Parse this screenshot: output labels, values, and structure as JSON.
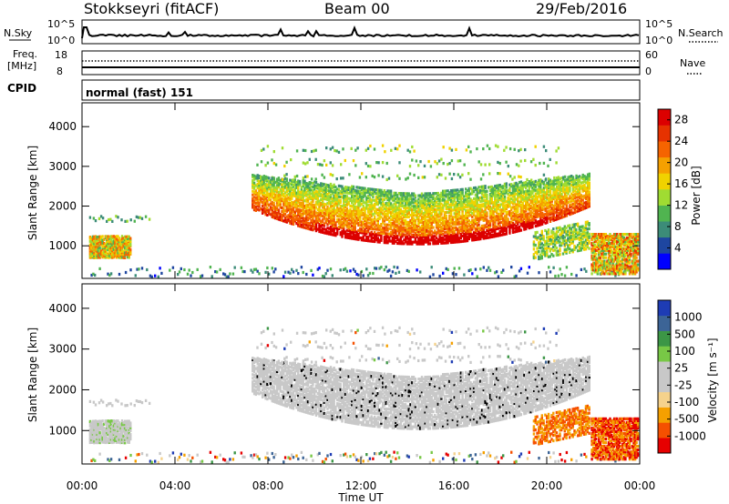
{
  "header": {
    "station": "Stokkseyri (fitACF)",
    "beam": "Beam 00",
    "date": "29/Feb/2016"
  },
  "strip_labels": {
    "nsky": "N.Sky",
    "nsky_top": "10^5",
    "nsky_bottom": "10^0",
    "nsearch": "N.Search",
    "nsearch_top": "10^5",
    "nsearch_bottom": "10^0",
    "freq_line1": "Freq.",
    "freq_line2": "[MHz]",
    "freq_top": "18",
    "freq_bottom": "8",
    "nave": "Nave",
    "nave_top": "60",
    "nave_bottom": "0",
    "cpid": "CPID",
    "cpid_text": "normal (fast) 151"
  },
  "colors": {
    "power_scale": [
      "#0000ff",
      "#1e46a0",
      "#3c8c78",
      "#50b450",
      "#a0dc32",
      "#f0d200",
      "#f5a000",
      "#f56400",
      "#e63200",
      "#dc0000"
    ],
    "velocity_scale": [
      "#e60000",
      "#f55000",
      "#f5a000",
      "#f5d28c",
      "#c8c8c8",
      "#c8c8c8",
      "#78c846",
      "#3c9646",
      "#3c6496",
      "#1e3cb4"
    ],
    "ground_scatter": "#c8c8c8"
  },
  "chart_data": [
    {
      "type": "heatmap",
      "panel": "power",
      "xlabel": "Time UT",
      "ylabel": "Slant Range [km]",
      "x_ticks": [
        "00:00",
        "04:00",
        "08:00",
        "12:00",
        "16:00",
        "20:00",
        "00:00"
      ],
      "y_ticks": [
        1000,
        2000,
        3000,
        4000
      ],
      "ylim": [
        180,
        4600
      ],
      "xlim_hours": [
        0,
        24
      ],
      "colorbar": {
        "label": "Power [dB]",
        "ticks": [
          4,
          8,
          12,
          16,
          20,
          24,
          28
        ],
        "range": [
          0,
          30
        ]
      }
    },
    {
      "type": "heatmap",
      "panel": "velocity",
      "xlabel": "Time UT",
      "ylabel": "Slant Range [km]",
      "x_ticks": [
        "00:00",
        "04:00",
        "08:00",
        "12:00",
        "16:00",
        "20:00",
        "00:00"
      ],
      "y_ticks": [
        1000,
        2000,
        3000,
        4000
      ],
      "ylim": [
        180,
        4600
      ],
      "xlim_hours": [
        0,
        24
      ],
      "colorbar": {
        "label": "Velocity [m s⁻¹]",
        "ticks": [
          "1000",
          "500",
          "100",
          "25",
          "-25",
          "-100",
          "-500",
          "-1000"
        ]
      }
    }
  ]
}
